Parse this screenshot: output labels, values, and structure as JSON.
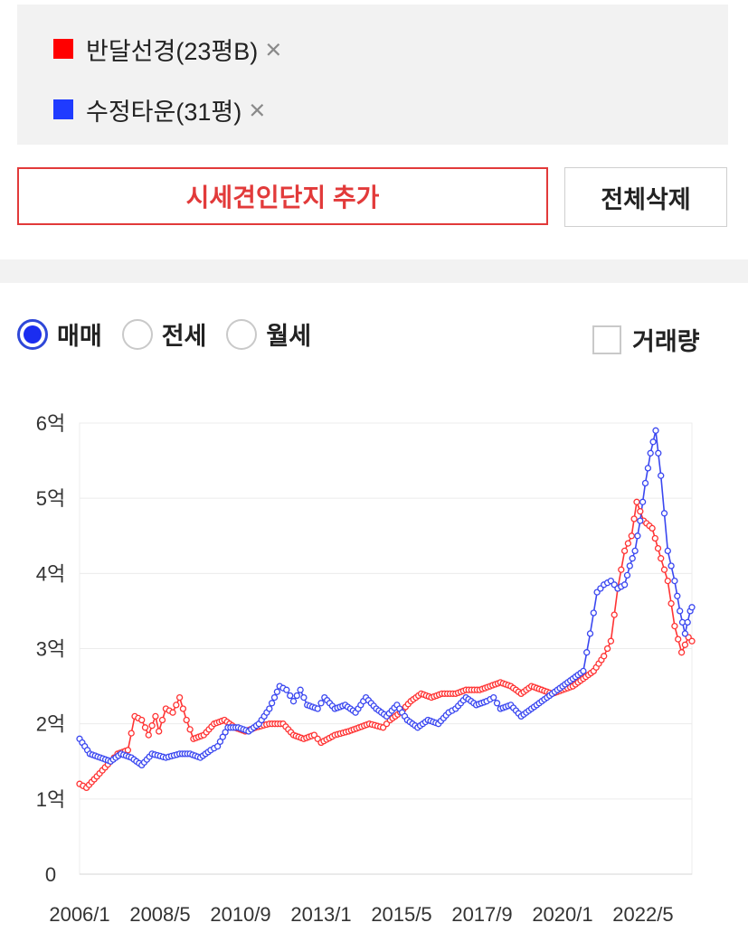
{
  "compare": {
    "items": [
      {
        "label": "반달선경(23평B)",
        "color": "#ff0000",
        "remove_icon": "×"
      },
      {
        "label": "수정타운(31평)",
        "color": "#1f3bff",
        "remove_icon": "×"
      }
    ],
    "add_button": "시세견인단지 추가",
    "clear_button": "전체삭제"
  },
  "options": {
    "radios": [
      {
        "label": "매매",
        "selected": true
      },
      {
        "label": "전세",
        "selected": false
      },
      {
        "label": "월세",
        "selected": false
      }
    ],
    "volume_label": "거래량",
    "volume_checked": false
  },
  "chart_data": {
    "type": "line",
    "x_unit": "year",
    "xlim": [
      2006.0,
      2023.75
    ],
    "ylim": [
      0,
      6
    ],
    "y_ticks": [
      {
        "value": 0,
        "label": "0"
      },
      {
        "value": 1,
        "label": "1억"
      },
      {
        "value": 2,
        "label": "2억"
      },
      {
        "value": 3,
        "label": "3억"
      },
      {
        "value": 4,
        "label": "4억"
      },
      {
        "value": 5,
        "label": "5억"
      },
      {
        "value": 6,
        "label": "6억"
      }
    ],
    "x_ticks": [
      {
        "value": 2006.0,
        "label": "2006/1"
      },
      {
        "value": 2008.333,
        "label": "2008/5"
      },
      {
        "value": 2010.667,
        "label": "2010/9"
      },
      {
        "value": 2013.0,
        "label": "2013/1"
      },
      {
        "value": 2015.333,
        "label": "2015/5"
      },
      {
        "value": 2017.667,
        "label": "2017/9"
      },
      {
        "value": 2020.0,
        "label": "2020/1"
      },
      {
        "value": 2022.333,
        "label": "2022/5"
      }
    ],
    "grid": "horizontal",
    "series": [
      {
        "name": "반달선경(23평B)",
        "color": "#ff3333",
        "anchors": [
          [
            2006.0,
            1.2
          ],
          [
            2006.2,
            1.15
          ],
          [
            2006.5,
            1.3
          ],
          [
            2006.9,
            1.5
          ],
          [
            2007.1,
            1.6
          ],
          [
            2007.4,
            1.65
          ],
          [
            2007.6,
            2.1
          ],
          [
            2007.8,
            2.05
          ],
          [
            2008.0,
            1.85
          ],
          [
            2008.2,
            2.1
          ],
          [
            2008.3,
            1.9
          ],
          [
            2008.5,
            2.2
          ],
          [
            2008.7,
            2.15
          ],
          [
            2008.9,
            2.35
          ],
          [
            2009.1,
            2.05
          ],
          [
            2009.3,
            1.8
          ],
          [
            2009.6,
            1.85
          ],
          [
            2009.9,
            2.0
          ],
          [
            2010.2,
            2.05
          ],
          [
            2010.5,
            1.95
          ],
          [
            2010.8,
            1.9
          ],
          [
            2011.1,
            1.95
          ],
          [
            2011.5,
            2.0
          ],
          [
            2011.9,
            2.0
          ],
          [
            2012.2,
            1.85
          ],
          [
            2012.5,
            1.8
          ],
          [
            2012.8,
            1.85
          ],
          [
            2013.0,
            1.75
          ],
          [
            2013.4,
            1.85
          ],
          [
            2013.8,
            1.9
          ],
          [
            2014.1,
            1.95
          ],
          [
            2014.4,
            2.0
          ],
          [
            2014.8,
            1.95
          ],
          [
            2015.0,
            2.05
          ],
          [
            2015.3,
            2.15
          ],
          [
            2015.6,
            2.3
          ],
          [
            2015.9,
            2.4
          ],
          [
            2016.2,
            2.35
          ],
          [
            2016.5,
            2.4
          ],
          [
            2016.9,
            2.4
          ],
          [
            2017.2,
            2.45
          ],
          [
            2017.6,
            2.45
          ],
          [
            2017.9,
            2.5
          ],
          [
            2018.2,
            2.55
          ],
          [
            2018.5,
            2.5
          ],
          [
            2018.8,
            2.4
          ],
          [
            2019.1,
            2.5
          ],
          [
            2019.4,
            2.45
          ],
          [
            2019.7,
            2.4
          ],
          [
            2020.0,
            2.45
          ],
          [
            2020.3,
            2.5
          ],
          [
            2020.6,
            2.6
          ],
          [
            2020.9,
            2.7
          ],
          [
            2021.2,
            2.9
          ],
          [
            2021.4,
            3.1
          ],
          [
            2021.6,
            3.8
          ],
          [
            2021.8,
            4.3
          ],
          [
            2022.0,
            4.5
          ],
          [
            2022.15,
            4.95
          ],
          [
            2022.35,
            4.7
          ],
          [
            2022.6,
            4.6
          ],
          [
            2022.85,
            4.2
          ],
          [
            2023.05,
            3.9
          ],
          [
            2023.25,
            3.3
          ],
          [
            2023.45,
            2.95
          ],
          [
            2023.65,
            3.15
          ],
          [
            2023.75,
            3.1
          ]
        ]
      },
      {
        "name": "수정타운(31평)",
        "color": "#3a47f0",
        "anchors": [
          [
            2006.0,
            1.8
          ],
          [
            2006.3,
            1.6
          ],
          [
            2006.6,
            1.55
          ],
          [
            2006.9,
            1.5
          ],
          [
            2007.2,
            1.6
          ],
          [
            2007.5,
            1.55
          ],
          [
            2007.8,
            1.45
          ],
          [
            2008.1,
            1.6
          ],
          [
            2008.5,
            1.55
          ],
          [
            2008.9,
            1.6
          ],
          [
            2009.2,
            1.6
          ],
          [
            2009.5,
            1.55
          ],
          [
            2009.8,
            1.65
          ],
          [
            2010.0,
            1.7
          ],
          [
            2010.3,
            1.95
          ],
          [
            2010.6,
            1.95
          ],
          [
            2010.9,
            1.9
          ],
          [
            2011.2,
            2.0
          ],
          [
            2011.5,
            2.2
          ],
          [
            2011.8,
            2.5
          ],
          [
            2012.0,
            2.45
          ],
          [
            2012.2,
            2.3
          ],
          [
            2012.4,
            2.45
          ],
          [
            2012.6,
            2.25
          ],
          [
            2012.9,
            2.2
          ],
          [
            2013.1,
            2.35
          ],
          [
            2013.4,
            2.2
          ],
          [
            2013.7,
            2.25
          ],
          [
            2014.0,
            2.15
          ],
          [
            2014.3,
            2.35
          ],
          [
            2014.6,
            2.2
          ],
          [
            2014.9,
            2.1
          ],
          [
            2015.2,
            2.25
          ],
          [
            2015.5,
            2.05
          ],
          [
            2015.8,
            1.95
          ],
          [
            2016.1,
            2.05
          ],
          [
            2016.4,
            2.0
          ],
          [
            2016.7,
            2.15
          ],
          [
            2016.9,
            2.2
          ],
          [
            2017.2,
            2.35
          ],
          [
            2017.5,
            2.25
          ],
          [
            2017.8,
            2.3
          ],
          [
            2018.0,
            2.35
          ],
          [
            2018.2,
            2.2
          ],
          [
            2018.5,
            2.25
          ],
          [
            2018.8,
            2.1
          ],
          [
            2019.1,
            2.2
          ],
          [
            2019.4,
            2.3
          ],
          [
            2019.7,
            2.4
          ],
          [
            2020.0,
            2.5
          ],
          [
            2020.3,
            2.6
          ],
          [
            2020.6,
            2.7
          ],
          [
            2020.8,
            3.2
          ],
          [
            2021.0,
            3.75
          ],
          [
            2021.2,
            3.85
          ],
          [
            2021.4,
            3.9
          ],
          [
            2021.6,
            3.8
          ],
          [
            2021.8,
            3.85
          ],
          [
            2021.95,
            4.1
          ],
          [
            2022.1,
            4.3
          ],
          [
            2022.25,
            4.7
          ],
          [
            2022.4,
            5.2
          ],
          [
            2022.55,
            5.6
          ],
          [
            2022.7,
            5.9
          ],
          [
            2022.85,
            5.3
          ],
          [
            2023.05,
            4.3
          ],
          [
            2023.25,
            3.9
          ],
          [
            2023.4,
            3.5
          ],
          [
            2023.55,
            3.2
          ],
          [
            2023.7,
            3.5
          ],
          [
            2023.75,
            3.55
          ]
        ]
      }
    ]
  }
}
